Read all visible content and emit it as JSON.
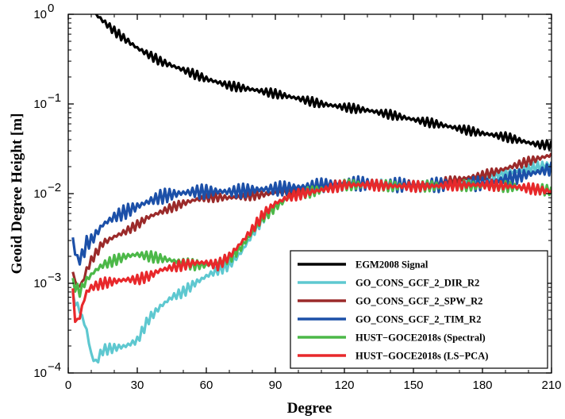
{
  "chart_data": {
    "type": "line",
    "title": "",
    "xlabel": "Degree",
    "ylabel": "Geoid Degree Height [m]",
    "xlim": [
      0,
      210
    ],
    "ylim": [
      0.0001,
      1
    ],
    "yscale": "log",
    "xticks": [
      0,
      30,
      60,
      90,
      120,
      150,
      180,
      210
    ],
    "xtick_labels": [
      "0",
      "30",
      "60",
      "90",
      "120",
      "150",
      "180",
      "210"
    ],
    "yticks": [
      0.0001,
      0.001,
      0.01,
      0.1,
      1
    ],
    "ytick_labels": [
      {
        "base": "10",
        "exp": "−4"
      },
      {
        "base": "10",
        "exp": "−3"
      },
      {
        "base": "10",
        "exp": "−2"
      },
      {
        "base": "10",
        "exp": "−1"
      },
      {
        "base": "10",
        "exp": "0"
      }
    ],
    "grid": false,
    "legend_position": "bottom-right",
    "series": [
      {
        "name": "EGM2008 Signal",
        "color": "#000000",
        "noise": 0.1,
        "x": [
          12,
          20,
          30,
          40,
          50,
          60,
          70,
          80,
          90,
          100,
          110,
          120,
          130,
          140,
          150,
          160,
          170,
          180,
          190,
          200,
          205,
          210
        ],
        "y": [
          1.0,
          0.65,
          0.42,
          0.3,
          0.24,
          0.19,
          0.16,
          0.145,
          0.13,
          0.115,
          0.1,
          0.092,
          0.085,
          0.076,
          0.067,
          0.06,
          0.053,
          0.047,
          0.043,
          0.037,
          0.035,
          0.035
        ]
      },
      {
        "name": "GO_CONS_GCF_2_DIR_R2",
        "color": "#5ec8d0",
        "noise": 0.12,
        "x": [
          2,
          5,
          8,
          10,
          12,
          15,
          20,
          25,
          30,
          35,
          40,
          45,
          50,
          55,
          60,
          65,
          70,
          75,
          80,
          85,
          90,
          95,
          100,
          110,
          120,
          130,
          140,
          150,
          160,
          170,
          180,
          190,
          200,
          210
        ],
        "y": [
          0.0007,
          0.0005,
          0.0003,
          0.00016,
          0.00013,
          0.00018,
          0.00019,
          0.0002,
          0.00023,
          0.0004,
          0.00055,
          0.0007,
          0.0008,
          0.001,
          0.0012,
          0.0014,
          0.0016,
          0.0022,
          0.0035,
          0.0055,
          0.0075,
          0.009,
          0.01,
          0.011,
          0.0125,
          0.0125,
          0.0125,
          0.012,
          0.012,
          0.013,
          0.015,
          0.017,
          0.019,
          0.021
        ]
      },
      {
        "name": "GO_CONS_GCF_2_SPW_R2",
        "color": "#9b2a2a",
        "noise": 0.1,
        "x": [
          2,
          4,
          6,
          8,
          10,
          15,
          20,
          25,
          30,
          35,
          40,
          45,
          50,
          55,
          60,
          65,
          70,
          75,
          80,
          85,
          90,
          100,
          110,
          120,
          130,
          140,
          150,
          160,
          170,
          180,
          190,
          200,
          210
        ],
        "y": [
          0.0013,
          0.0009,
          0.001,
          0.0014,
          0.0018,
          0.0028,
          0.0033,
          0.0038,
          0.0045,
          0.0055,
          0.0062,
          0.007,
          0.0078,
          0.0085,
          0.009,
          0.0091,
          0.009,
          0.0092,
          0.0095,
          0.0098,
          0.0102,
          0.011,
          0.012,
          0.013,
          0.0128,
          0.0125,
          0.0125,
          0.013,
          0.0145,
          0.016,
          0.019,
          0.023,
          0.027
        ]
      },
      {
        "name": "GO_CONS_GCF_2_TIM_R2",
        "color": "#1c50a8",
        "noise": 0.16,
        "x": [
          2,
          4,
          6,
          8,
          10,
          15,
          20,
          25,
          30,
          35,
          40,
          45,
          50,
          55,
          60,
          65,
          70,
          75,
          80,
          85,
          90,
          100,
          110,
          120,
          130,
          140,
          150,
          160,
          170,
          180,
          190,
          200,
          210
        ],
        "y": [
          0.003,
          0.0018,
          0.002,
          0.0028,
          0.003,
          0.0045,
          0.0055,
          0.0063,
          0.0072,
          0.0082,
          0.0092,
          0.0098,
          0.0102,
          0.0105,
          0.0105,
          0.0106,
          0.0105,
          0.0107,
          0.011,
          0.0112,
          0.0113,
          0.0118,
          0.0123,
          0.0132,
          0.0128,
          0.0125,
          0.0125,
          0.0125,
          0.0125,
          0.013,
          0.0145,
          0.0165,
          0.019
        ]
      },
      {
        "name": "HUST−GOCE2018s (Spectral)",
        "color": "#4cb848",
        "noise": 0.12,
        "x": [
          2,
          5,
          8,
          12,
          15,
          20,
          25,
          30,
          35,
          40,
          45,
          50,
          55,
          60,
          65,
          70,
          75,
          80,
          85,
          90,
          95,
          100,
          110,
          120,
          130,
          140,
          150,
          160,
          170,
          180,
          190,
          200,
          210
        ],
        "y": [
          0.001,
          0.0008,
          0.0011,
          0.0014,
          0.0016,
          0.0018,
          0.002,
          0.0021,
          0.002,
          0.0019,
          0.0018,
          0.0017,
          0.0016,
          0.0016,
          0.0017,
          0.0019,
          0.0025,
          0.0037,
          0.0055,
          0.0072,
          0.0088,
          0.0098,
          0.011,
          0.0125,
          0.0125,
          0.0122,
          0.012,
          0.0122,
          0.0123,
          0.0122,
          0.012,
          0.0115,
          0.0108
        ]
      },
      {
        "name": "HUST−GOCE2018s (LS−PCA)",
        "color": "#e8282b",
        "noise": 0.12,
        "x": [
          2,
          3,
          4,
          5,
          6,
          8,
          10,
          15,
          20,
          25,
          30,
          35,
          40,
          45,
          50,
          55,
          60,
          65,
          70,
          75,
          80,
          85,
          90,
          95,
          100,
          110,
          120,
          130,
          140,
          150,
          160,
          170,
          180,
          190,
          200,
          210
        ],
        "y": [
          0.0008,
          0.0004,
          0.00038,
          0.00042,
          0.00055,
          0.0008,
          0.0009,
          0.001,
          0.00105,
          0.0011,
          0.0011,
          0.0012,
          0.0014,
          0.0015,
          0.0016,
          0.0017,
          0.0017,
          0.0016,
          0.002,
          0.0028,
          0.004,
          0.006,
          0.0078,
          0.009,
          0.0098,
          0.011,
          0.0125,
          0.0125,
          0.0122,
          0.012,
          0.0122,
          0.0125,
          0.0125,
          0.0122,
          0.0115,
          0.0105
        ]
      }
    ]
  }
}
